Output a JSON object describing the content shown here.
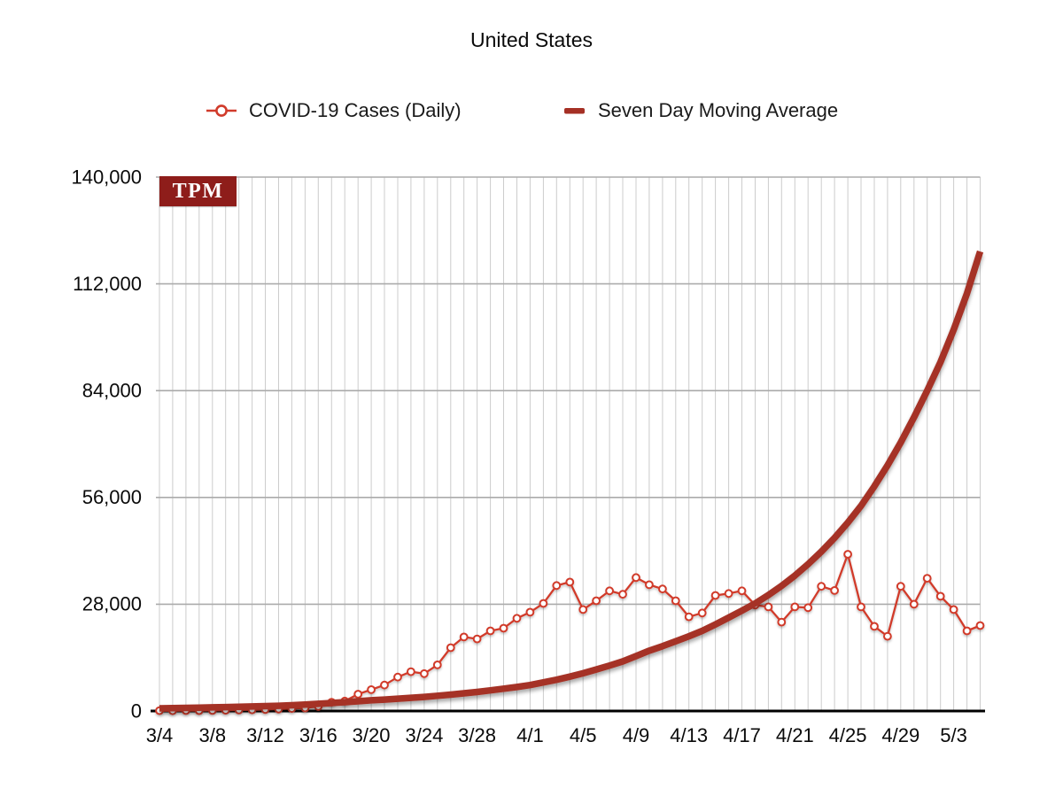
{
  "title": "United States",
  "logo": {
    "text": "TPM"
  },
  "legend": [
    {
      "label": "COVID-19 Cases (Daily)",
      "marker": "circle-on-line",
      "color": "#d13b2b"
    },
    {
      "label": "Seven Day Moving Average",
      "marker": "thick-dash",
      "color": "#a53025"
    }
  ],
  "colors": {
    "daily": "#d13b2b",
    "moving_avg": "#a53025",
    "logo_bg": "#8e1d1a",
    "grid_vertical": "#cccccc",
    "grid_horizontal": "#ababab",
    "axis": "#000000",
    "tick_text": "#0a0a0a"
  },
  "chart_data": {
    "type": "line",
    "title": "United States",
    "xlabel": "",
    "ylabel": "",
    "ylim": [
      0,
      140000
    ],
    "yticks": [
      0,
      28000,
      56000,
      84000,
      112000,
      140000
    ],
    "ytick_labels": [
      "0",
      "28,000",
      "56,000",
      "84,000",
      "112,000",
      "140,000"
    ],
    "grid": "both",
    "legend_position": "top",
    "xtick_every": 4,
    "xtick_last_index": 60,
    "x": [
      "3/4",
      "3/5",
      "3/6",
      "3/7",
      "3/8",
      "3/9",
      "3/10",
      "3/11",
      "3/12",
      "3/13",
      "3/14",
      "3/15",
      "3/16",
      "3/17",
      "3/18",
      "3/19",
      "3/20",
      "3/21",
      "3/22",
      "3/23",
      "3/24",
      "3/25",
      "3/26",
      "3/27",
      "3/28",
      "3/29",
      "3/30",
      "3/31",
      "4/1",
      "4/2",
      "4/3",
      "4/4",
      "4/5",
      "4/6",
      "4/7",
      "4/8",
      "4/9",
      "4/10",
      "4/11",
      "4/12",
      "4/13",
      "4/14",
      "4/15",
      "4/16",
      "4/17",
      "4/18",
      "4/19",
      "4/20",
      "4/21",
      "4/22",
      "4/23",
      "4/24",
      "4/25",
      "4/26",
      "4/27",
      "4/28",
      "4/29",
      "4/30",
      "5/1",
      "5/2",
      "5/3",
      "5/4",
      "5/5"
    ],
    "series": [
      {
        "name": "COVID-19 Cases (Daily)",
        "style": "line-with-markers",
        "color": "#d13b2b",
        "values": [
          100,
          80,
          120,
          100,
          150,
          180,
          250,
          300,
          400,
          500,
          650,
          800,
          1200,
          2300,
          2600,
          4400,
          5600,
          6800,
          8900,
          10300,
          9800,
          12100,
          16600,
          19400,
          18900,
          21000,
          21700,
          24300,
          25900,
          28200,
          32900,
          33800,
          26600,
          28900,
          31500,
          30600,
          35000,
          33100,
          32000,
          28900,
          24700,
          25700,
          30300,
          30800,
          31500,
          27800,
          27300,
          23300,
          27300,
          27100,
          32700,
          31600,
          41100,
          27300,
          22200,
          19600,
          32700,
          28000,
          34800,
          30100,
          26600,
          21000,
          22400
        ]
      },
      {
        "name": "Seven Day Moving Average",
        "style": "thick-line",
        "color": "#a53025",
        "values": [
          700,
          760,
          820,
          880,
          950,
          1020,
          1100,
          1190,
          1280,
          1380,
          1500,
          1680,
          1880,
          2100,
          2320,
          2550,
          2800,
          3000,
          3220,
          3450,
          3700,
          4000,
          4300,
          4650,
          5000,
          5400,
          5850,
          6300,
          6800,
          7500,
          8200,
          9000,
          9900,
          10900,
          11900,
          13000,
          14400,
          15800,
          17000,
          18300,
          19600,
          21000,
          22700,
          24500,
          26300,
          28200,
          30400,
          32800,
          35500,
          38500,
          41800,
          45400,
          49400,
          53800,
          58900,
          64400,
          70400,
          77000,
          84000,
          91500,
          100000,
          109500,
          120500
        ]
      }
    ]
  }
}
